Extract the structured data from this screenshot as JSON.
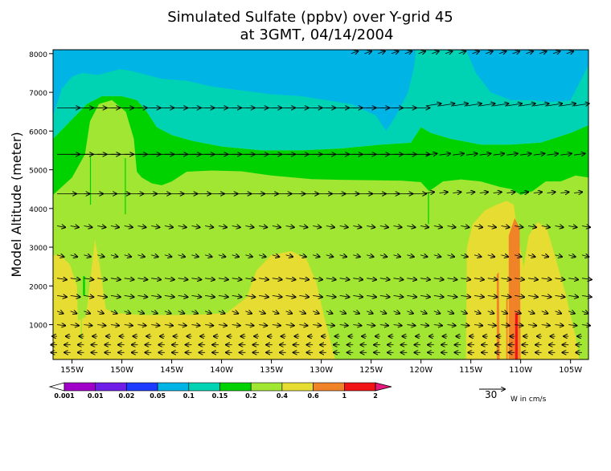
{
  "chart_data": {
    "type": "heatmap",
    "title": [
      "Simulated Sulfate (ppbv) over Y-grid 45",
      "at 3GMT, 04/14/2004"
    ],
    "ylabel": "Model Altitude (meter)",
    "xlabel": "",
    "x_ticks": [
      "155W",
      "150W",
      "145W",
      "140W",
      "135W",
      "130W",
      "125W",
      "120W",
      "115W",
      "110W",
      "105W"
    ],
    "x_tick_values": [
      -155,
      -150,
      -145,
      -140,
      -135,
      -130,
      -125,
      -120,
      -115,
      -110,
      -105
    ],
    "xlim": [
      -156.9,
      -103.2
    ],
    "y_ticks": [
      "1000",
      "2000",
      "3000",
      "4000",
      "5000",
      "6000",
      "7000",
      "8000"
    ],
    "y_tick_values": [
      1000,
      2000,
      3000,
      4000,
      5000,
      6000,
      7000,
      8000
    ],
    "ylim": [
      100,
      8100
    ],
    "levels": [
      "0.001",
      "0.01",
      "0.02",
      "0.05",
      "0.1",
      "0.15",
      "0.2",
      "0.4",
      "0.6",
      "1",
      "2"
    ],
    "level_colors": [
      "#a000c8",
      "#6e1ee6",
      "#1e3cff",
      "#00b4e6",
      "#00d2b4",
      "#00d200",
      "#a0e632",
      "#e6dc32",
      "#f08228",
      "#f01414"
    ],
    "background_color": "#a0e632",
    "regions": [
      {
        "level": "0.4",
        "color": "#e6dc32",
        "poly": [
          [
            -156.9,
            100
          ],
          [
            -156.9,
            2780
          ],
          [
            -156.3,
            2820
          ],
          [
            -155.2,
            2550
          ],
          [
            -154.5,
            2000
          ],
          [
            -154.4,
            1100
          ],
          [
            -153.6,
            1200
          ],
          [
            -153.1,
            2300
          ],
          [
            -152.7,
            3200
          ],
          [
            -152.2,
            2500
          ],
          [
            -151.6,
            1400
          ],
          [
            -150.6,
            1300
          ],
          [
            -148,
            1250
          ],
          [
            -145,
            1250
          ],
          [
            -142,
            1260
          ],
          [
            -139.5,
            1300
          ],
          [
            -137.5,
            1700
          ],
          [
            -136.5,
            2400
          ],
          [
            -135,
            2800
          ],
          [
            -133,
            2900
          ],
          [
            -131.5,
            2700
          ],
          [
            -130.5,
            2100
          ],
          [
            -129.7,
            1200
          ],
          [
            -128.6,
            100
          ]
        ]
      },
      {
        "level": "0.4",
        "color": "#e6dc32",
        "poly": [
          [
            -115.5,
            100
          ],
          [
            -115.4,
            3000
          ],
          [
            -114.8,
            3600
          ],
          [
            -113.6,
            3950
          ],
          [
            -112.4,
            4100
          ],
          [
            -111.4,
            4200
          ],
          [
            -110.7,
            4100
          ],
          [
            -110.2,
            3200
          ],
          [
            -109.7,
            2500
          ],
          [
            -109.2,
            3300
          ],
          [
            -108.3,
            3650
          ],
          [
            -107.4,
            3500
          ],
          [
            -106.7,
            2900
          ],
          [
            -105.5,
            1800
          ],
          [
            -104.5,
            700
          ],
          [
            -104.1,
            100
          ]
        ]
      },
      {
        "level": "0.6",
        "color": "#f08228",
        "poly": [
          [
            -111.2,
            100
          ],
          [
            -111.2,
            3300
          ],
          [
            -110.6,
            3750
          ],
          [
            -110.1,
            3500
          ],
          [
            -110.0,
            100
          ]
        ]
      },
      {
        "level": "0.6",
        "color": "#f08228",
        "poly": [
          [
            -112.4,
            100
          ],
          [
            -112.4,
            2300
          ],
          [
            -112.2,
            2350
          ],
          [
            -112.1,
            100
          ]
        ]
      },
      {
        "level": "0.6",
        "color": "#f08228",
        "poly": [
          [
            -111.45,
            100
          ],
          [
            -111.45,
            1650
          ],
          [
            -111.3,
            1650
          ],
          [
            -111.3,
            100
          ]
        ]
      },
      {
        "level": "1",
        "color": "#f01414",
        "poly": [
          [
            -110.55,
            100
          ],
          [
            -110.55,
            1300
          ],
          [
            -110.3,
            1300
          ],
          [
            -110.3,
            100
          ]
        ]
      },
      {
        "level": "0.15",
        "color": "#00d200",
        "poly": [
          [
            -156.9,
            4350
          ],
          [
            -155,
            4800
          ],
          [
            -153.7,
            5400
          ],
          [
            -153.2,
            6250
          ],
          [
            -152.3,
            6700
          ],
          [
            -151,
            6800
          ],
          [
            -149.6,
            6500
          ],
          [
            -148.8,
            5800
          ],
          [
            -148.5,
            4950
          ],
          [
            -148,
            4800
          ],
          [
            -147,
            4650
          ],
          [
            -146,
            4600
          ],
          [
            -145,
            4700
          ],
          [
            -143.5,
            4950
          ],
          [
            -141,
            4980
          ],
          [
            -138,
            4960
          ],
          [
            -135,
            4850
          ],
          [
            -131,
            4760
          ],
          [
            -128,
            4740
          ],
          [
            -125,
            4730
          ],
          [
            -122,
            4720
          ],
          [
            -120,
            4680
          ],
          [
            -119.2,
            4450
          ],
          [
            -118.6,
            4550
          ],
          [
            -117.8,
            4700
          ],
          [
            -116,
            4750
          ],
          [
            -114,
            4700
          ],
          [
            -112,
            4550
          ],
          [
            -110.9,
            4500
          ],
          [
            -110,
            4350
          ],
          [
            -108.8,
            4450
          ],
          [
            -107.5,
            4700
          ],
          [
            -106,
            4700
          ],
          [
            -104.5,
            4850
          ],
          [
            -103.2,
            4800
          ],
          [
            -103.2,
            6150
          ],
          [
            -105,
            5950
          ],
          [
            -108,
            5700
          ],
          [
            -111,
            5650
          ],
          [
            -114,
            5650
          ],
          [
            -117,
            5800
          ],
          [
            -119,
            5950
          ],
          [
            -120,
            6100
          ],
          [
            -121,
            5700
          ],
          [
            -124,
            5650
          ],
          [
            -128,
            5550
          ],
          [
            -132,
            5500
          ],
          [
            -136,
            5500
          ],
          [
            -140,
            5600
          ],
          [
            -143,
            5750
          ],
          [
            -145,
            5900
          ],
          [
            -146.5,
            6100
          ],
          [
            -147.5,
            6500
          ],
          [
            -148.5,
            6800
          ],
          [
            -150,
            6900
          ],
          [
            -152,
            6900
          ],
          [
            -153.5,
            6700
          ],
          [
            -155,
            6300
          ],
          [
            -156.9,
            5800
          ]
        ]
      },
      {
        "level": "0.1",
        "color": "#00d2b4",
        "poly": [
          [
            -156.9,
            5800
          ],
          [
            -155,
            6300
          ],
          [
            -153.5,
            6700
          ],
          [
            -152,
            6900
          ],
          [
            -150,
            6900
          ],
          [
            -148.5,
            6800
          ],
          [
            -147.5,
            6500
          ],
          [
            -146.5,
            6100
          ],
          [
            -145,
            5900
          ],
          [
            -143,
            5750
          ],
          [
            -140,
            5600
          ],
          [
            -136,
            5500
          ],
          [
            -132,
            5500
          ],
          [
            -128,
            5550
          ],
          [
            -124,
            5650
          ],
          [
            -121,
            5700
          ],
          [
            -120,
            6100
          ],
          [
            -119,
            5950
          ],
          [
            -117,
            5800
          ],
          [
            -114,
            5650
          ],
          [
            -111,
            5650
          ],
          [
            -108,
            5700
          ],
          [
            -105,
            5950
          ],
          [
            -103.2,
            6150
          ],
          [
            -103.2,
            8100
          ],
          [
            -156.9,
            8100
          ]
        ]
      },
      {
        "level": "0.05",
        "color": "#00b4e6",
        "poly": [
          [
            -156.9,
            6400
          ],
          [
            -156,
            7100
          ],
          [
            -155,
            7400
          ],
          [
            -154,
            7500
          ],
          [
            -152.4,
            7450
          ],
          [
            -150.2,
            7600
          ],
          [
            -149,
            7550
          ],
          [
            -147.5,
            7450
          ],
          [
            -146,
            7350
          ],
          [
            -143.5,
            7300
          ],
          [
            -141,
            7150
          ],
          [
            -138,
            7050
          ],
          [
            -135,
            6950
          ],
          [
            -132,
            6900
          ],
          [
            -129.5,
            6800
          ],
          [
            -127,
            6700
          ],
          [
            -124.5,
            6400
          ],
          [
            -123.5,
            6000
          ],
          [
            -122.5,
            6400
          ],
          [
            -121.3,
            7000
          ],
          [
            -120.7,
            7650
          ],
          [
            -120.5,
            8100
          ],
          [
            -156.9,
            8100
          ]
        ]
      },
      {
        "level": "0.05",
        "color": "#00b4e6",
        "poly": [
          [
            -115.5,
            8100
          ],
          [
            -114.5,
            7500
          ],
          [
            -113,
            7000
          ],
          [
            -111,
            6800
          ],
          [
            -109,
            6800
          ],
          [
            -107,
            6750
          ],
          [
            -105,
            6800
          ],
          [
            -104.2,
            7200
          ],
          [
            -103.2,
            7700
          ],
          [
            -103.2,
            8100
          ]
        ]
      },
      {
        "level": "0.15",
        "color": "#00d200",
        "poly": [
          [
            -153.2,
            5350
          ],
          [
            -153.2,
            4100
          ],
          [
            -153.1,
            4100
          ],
          [
            -153.1,
            5350
          ]
        ]
      },
      {
        "level": "0.15",
        "color": "#00d200",
        "poly": [
          [
            -149.7,
            5300
          ],
          [
            -149.7,
            3850
          ],
          [
            -149.6,
            3850
          ],
          [
            -149.6,
            5300
          ]
        ]
      },
      {
        "level": "0.15",
        "color": "#00d200",
        "poly": [
          [
            -119.3,
            4400
          ],
          [
            -119.3,
            3600
          ],
          [
            -119.2,
            3600
          ],
          [
            -119.2,
            4400
          ]
        ]
      },
      {
        "level": "0.15",
        "color": "#00d200",
        "poly": [
          [
            -153.9,
            2250
          ],
          [
            -153.9,
            1750
          ],
          [
            -153.7,
            1750
          ],
          [
            -153.7,
            2250
          ]
        ]
      },
      {
        "level": "0.2",
        "color": "#a0e632",
        "poly": [
          [
            -154.1,
            1750
          ],
          [
            -154.1,
            600
          ],
          [
            -154.0,
            600
          ],
          [
            -154.0,
            1750
          ]
        ]
      }
    ],
    "vector_rows": [
      {
        "y": 8000,
        "u": 10,
        "v": 0.5,
        "x_start": -127,
        "x_end": -104.5
      },
      {
        "y": 6600,
        "u": 33,
        "v": 0.0,
        "x_start": -156.5,
        "x_end": -120.5
      },
      {
        "y": 6650,
        "u": 22,
        "v": 0.5,
        "x_start": -119.5,
        "x_end": -103.5
      },
      {
        "y": 5400,
        "u": 33,
        "v": 0.0,
        "x_start": -156.5,
        "x_end": -120.5
      },
      {
        "y": 5380,
        "u": 16,
        "v": 0.3,
        "x_start": -119.5,
        "x_end": -103.5
      },
      {
        "y": 4380,
        "u": 28,
        "v": 0.0,
        "x_start": -156.5,
        "x_end": -120.5
      },
      {
        "y": 4400,
        "u": 12,
        "v": 0.2,
        "x_start": -119.5,
        "x_end": -103.5
      },
      {
        "y": 3550,
        "u": 12,
        "v": -0.3,
        "x_start": -156.5,
        "x_end": -103.5
      },
      {
        "y": 2800,
        "u": 10,
        "v": -0.4,
        "x_start": -156.5,
        "x_end": -103.5
      },
      {
        "y": 2200,
        "u": 14,
        "v": -0.3,
        "x_start": -156.5,
        "x_end": -103.5
      },
      {
        "y": 1750,
        "u": 14,
        "v": -0.3,
        "x_start": -156.5,
        "x_end": -103.5
      },
      {
        "y": 1350,
        "u": 9,
        "v": -0.5,
        "x_start": -156.5,
        "x_end": -103.5
      },
      {
        "y": 1000,
        "u": 12,
        "v": -0.2,
        "x_start": -156.5,
        "x_end": -103.5
      },
      {
        "y": 700,
        "u": -7,
        "v": 0.0,
        "x_start": -156.5,
        "x_end": -103.5
      },
      {
        "y": 480,
        "u": -9,
        "v": 0.0,
        "x_start": -156.5,
        "x_end": -103.5
      },
      {
        "y": 280,
        "u": -9,
        "v": 0.0,
        "x_start": -156.5,
        "x_end": -103.5
      }
    ],
    "vector_scale_label": "30",
    "vector_unit_label": "W in cm/s",
    "grid": false,
    "legend_placement": "bottom"
  }
}
